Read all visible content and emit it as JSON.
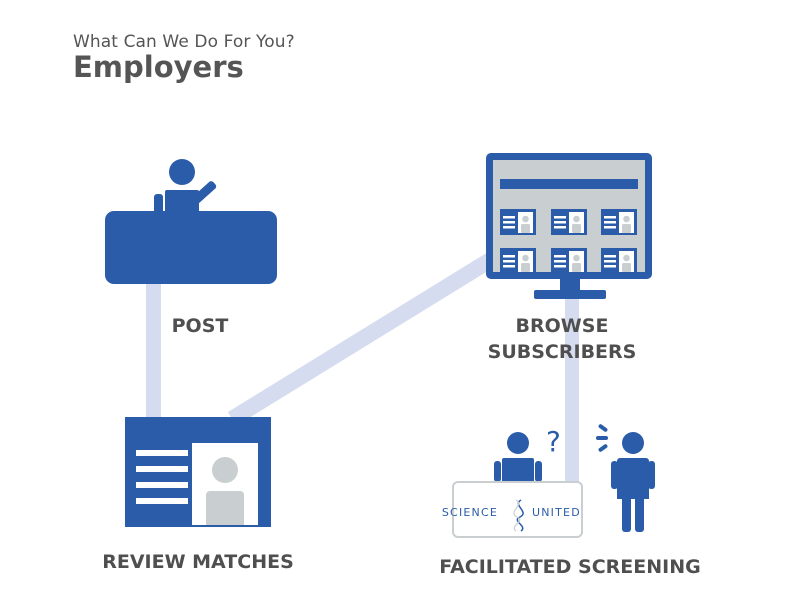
{
  "header": {
    "subtitle": "What Can We Do For You?",
    "title": "Employers"
  },
  "steps": [
    {
      "label": "POST"
    },
    {
      "label_line1": "BROWSE",
      "label_line2": "SUBSCRIBERS"
    },
    {
      "label": "REVIEW MATCHES"
    },
    {
      "label": "FACILITATED SCREENING"
    }
  ],
  "logo": {
    "text_left": "SCIENCE",
    "text_right": "UNITED"
  },
  "colors": {
    "primary": "#2a5caa",
    "connector": "#d6dcef",
    "grey": "#c9cfd1",
    "text": "#4f4f4f"
  },
  "icons": [
    "presenter-at-podium-icon",
    "monitor-grid-icon",
    "profile-card-icon",
    "question-person-icon",
    "alert-person-icon"
  ]
}
